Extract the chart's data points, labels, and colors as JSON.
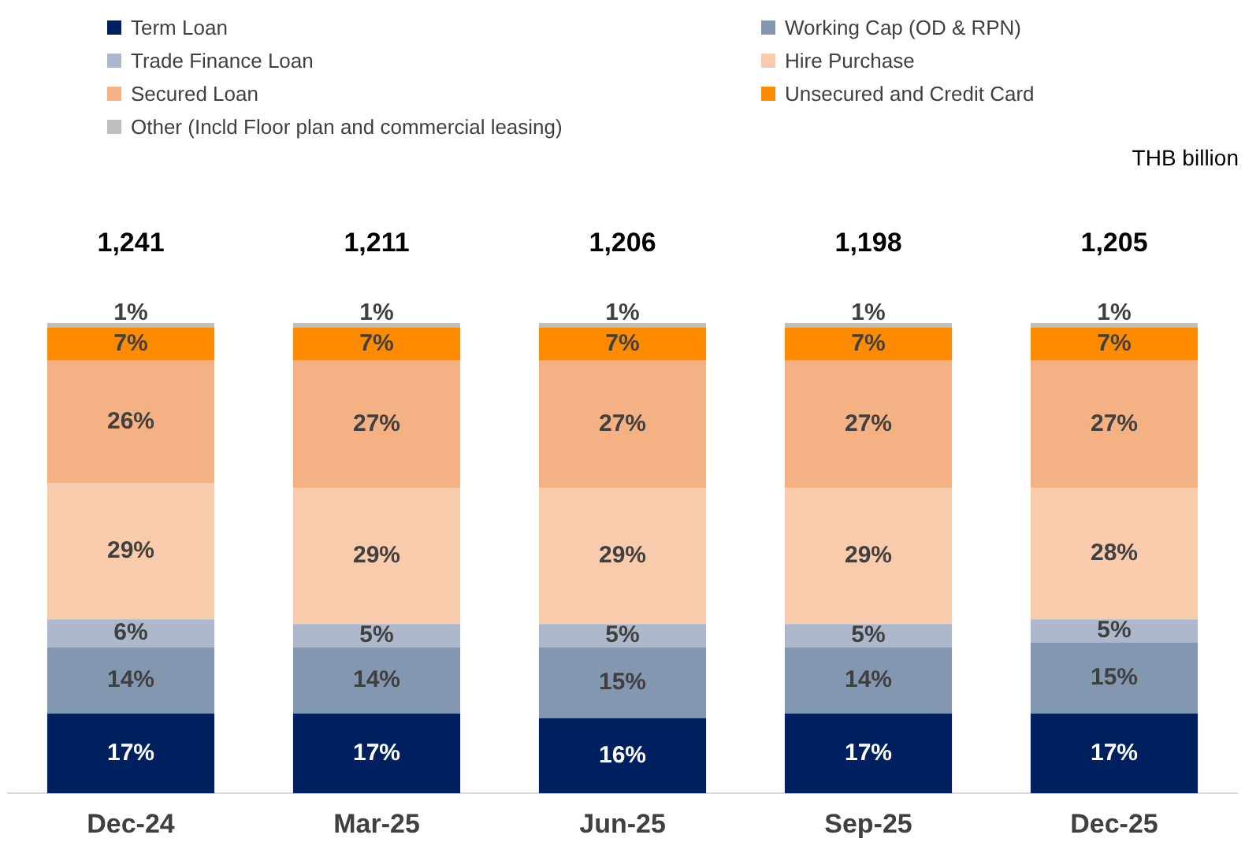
{
  "chart_data": {
    "type": "bar",
    "stacked": true,
    "legend": "top",
    "tick_labels": "x",
    "grid": false,
    "categories": [
      "Dec-24",
      "Mar-25",
      "Jun-25",
      "Sep-25",
      "Dec-25"
    ],
    "series": [
      {
        "name": "Term Loan",
        "color": "#002060",
        "values": [
          17,
          17,
          16,
          17,
          17
        ],
        "value_labels": [
          "17%",
          "17%",
          "16%",
          "17%",
          "17%"
        ]
      },
      {
        "name": "Working Cap (OD & RPN)",
        "color": "#8497b0",
        "values": [
          14,
          14,
          15,
          14,
          15
        ],
        "value_labels": [
          "14%",
          "14%",
          "15%",
          "14%",
          "15%"
        ]
      },
      {
        "name": "Trade Finance Loan",
        "color": "#adb9ca",
        "values": [
          6,
          5,
          5,
          5,
          5
        ],
        "value_labels": [
          "6%",
          "5%",
          "5%",
          "5%",
          "5%"
        ]
      },
      {
        "name": "Hire Purchase",
        "color": "#f8cbad",
        "values": [
          29,
          29,
          29,
          29,
          28
        ],
        "value_labels": [
          "29%",
          "29%",
          "29%",
          "29%",
          "28%"
        ]
      },
      {
        "name": "Secured Loan",
        "color": "#f4b183",
        "values": [
          26,
          27,
          27,
          27,
          27
        ],
        "value_labels": [
          "26%",
          "27%",
          "27%",
          "27%",
          "27%"
        ]
      },
      {
        "name": "Unsecured and Credit Card",
        "color": "#ff8c00",
        "values": [
          7,
          7,
          7,
          7,
          7
        ],
        "value_labels": [
          "7%",
          "7%",
          "7%",
          "7%",
          "7%"
        ]
      },
      {
        "name": "Other (Incld Floor plan and commercial leasing)",
        "color": "#bfbfbf",
        "values": [
          1,
          1,
          1,
          1,
          1
        ],
        "value_labels": [
          "1%",
          "1%",
          "1%",
          "1%",
          "1%"
        ]
      }
    ],
    "annotations": [
      "THB billion",
      {
        "text": "1,241",
        "x": "Dec-24",
        "y": 100
      },
      {
        "text": "1,211",
        "x": "Mar-25",
        "y": 100
      },
      {
        "text": "1,206",
        "x": "Jun-25",
        "y": 100
      },
      {
        "text": "1,198",
        "x": "Sep-25",
        "y": 100
      },
      {
        "text": "1,205",
        "x": "Dec-25",
        "y": 100
      }
    ]
  }
}
